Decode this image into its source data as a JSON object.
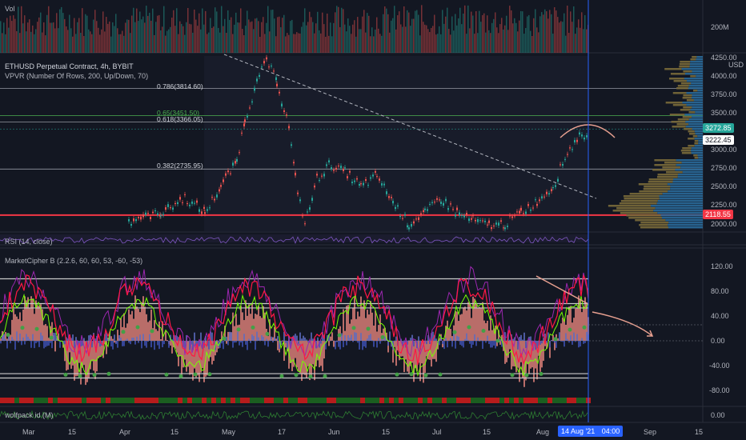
{
  "volume_pane": {
    "title": "Vol",
    "axis_label": "200M"
  },
  "main_pane": {
    "symbol": "ETHUSD Perpetual Contract, 4h, BYBIT",
    "indicator": "VPVR (Number Of Rows, 200, Up/Down, 70)",
    "currency": "USD",
    "fib_levels": [
      {
        "label": "0.786(3814.60)",
        "price": 3814.6,
        "color": "#d1d4dc"
      },
      {
        "label": "0.65(3451.50)",
        "price": 3451.5,
        "color": "#4caf50"
      },
      {
        "label": "0.618(3366.05)",
        "price": 3366.05,
        "color": "#d1d4dc"
      },
      {
        "label": "0.382(2735.95)",
        "price": 2735.95,
        "color": "#d1d4dc"
      }
    ],
    "price_axis": [
      "4250.00",
      "4000.00",
      "3750.00",
      "3500.00",
      "3250.00",
      "3000.00",
      "2750.00",
      "2500.00",
      "2250.00",
      "2000.00"
    ],
    "price_tags": [
      {
        "label": "3272.85",
        "color": "#26a69a"
      },
      {
        "label": "3222.45",
        "color": "#ffffff"
      },
      {
        "label": "2118.55",
        "color": "#f23645"
      }
    ]
  },
  "rsi_pane": {
    "title": "RSI (14, close)"
  },
  "cipher_pane": {
    "title": "MarketCipher B (2.2.6, 60, 60, 53, -60, -53)",
    "axis": [
      "120.00",
      "80.00",
      "40.00",
      "0.00",
      "-40.00",
      "-80.00"
    ]
  },
  "wolfpack_pane": {
    "title": "wolfpack id (M)",
    "axis_label": "0.00"
  },
  "time_axis": [
    {
      "label": "Mar"
    },
    {
      "label": "15"
    },
    {
      "label": "Apr"
    },
    {
      "label": "15"
    },
    {
      "label": "May"
    },
    {
      "label": "17"
    },
    {
      "label": "Jun"
    },
    {
      "label": "15"
    },
    {
      "label": "Jul"
    },
    {
      "label": "15"
    },
    {
      "label": "Aug"
    },
    {
      "label": "Sep"
    },
    {
      "label": "15"
    }
  ],
  "cursor_time": {
    "date": "14 Aug '21",
    "time": "04:00"
  },
  "colors": {
    "background": "#131722",
    "up": "#26a69a",
    "down": "#ef5350",
    "cursor": "#2962ff"
  }
}
